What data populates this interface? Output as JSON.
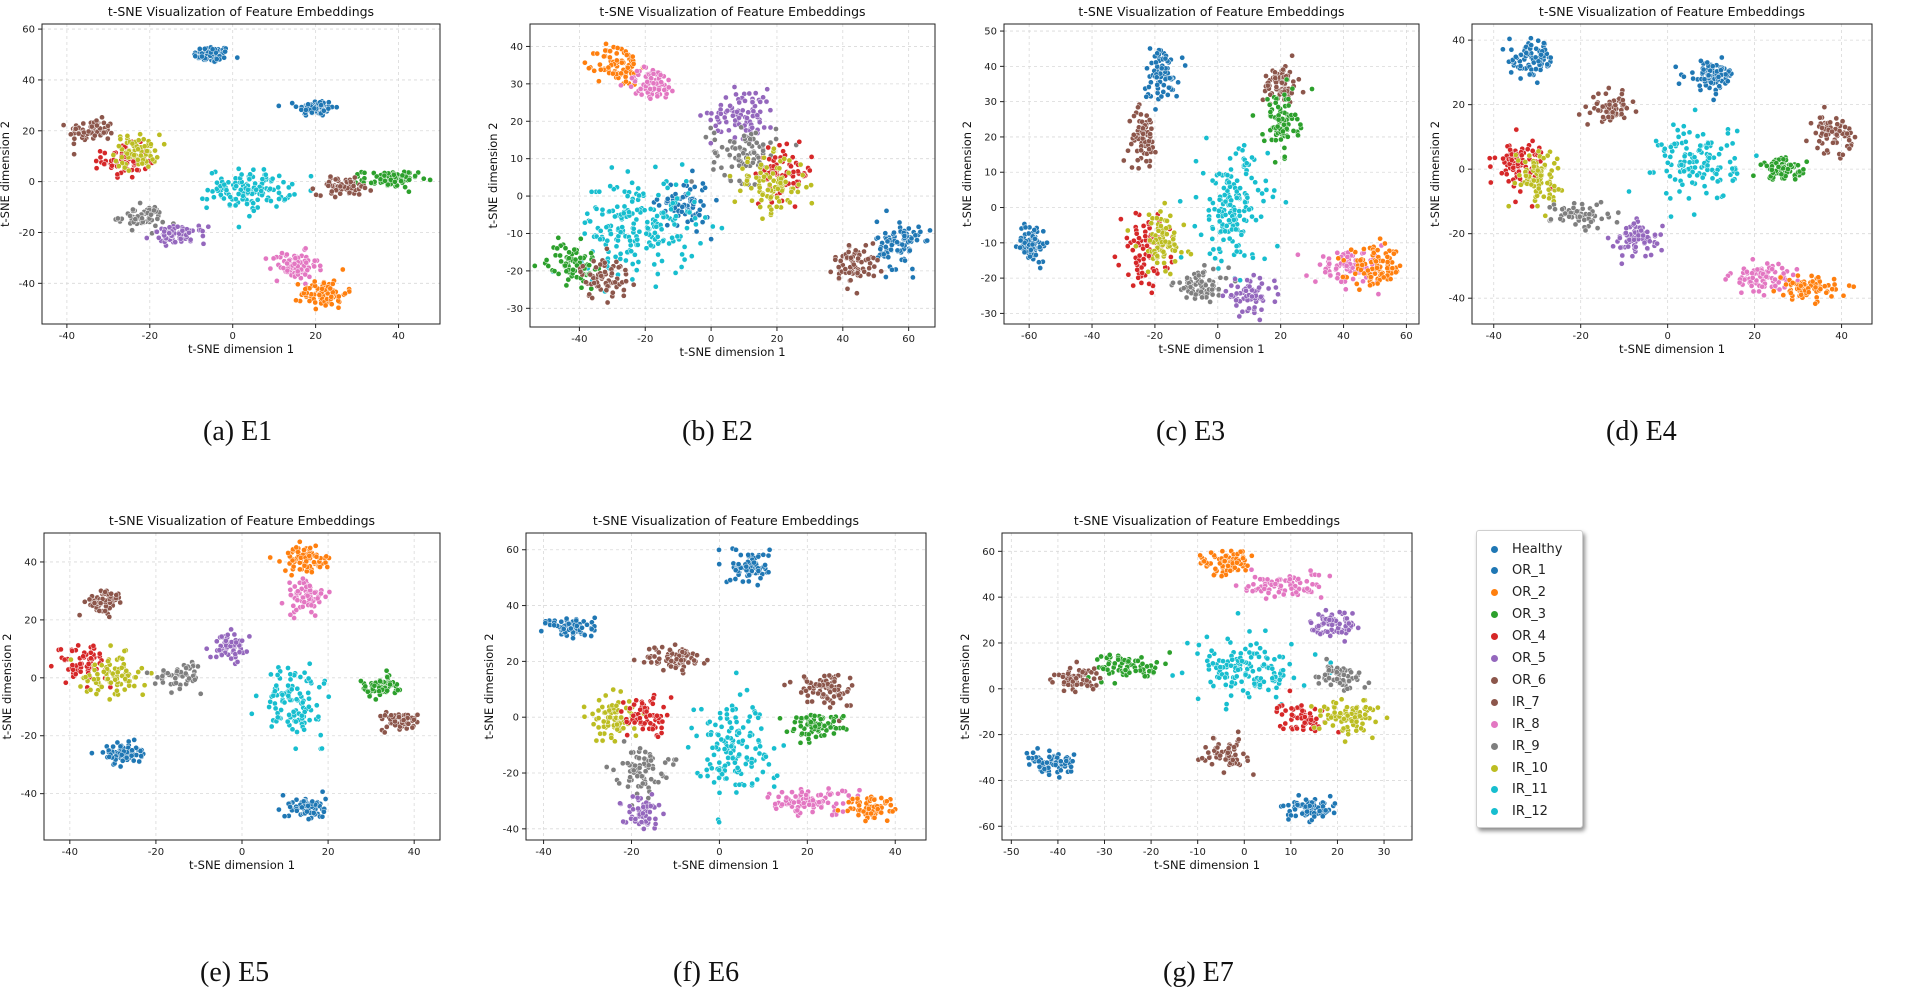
{
  "charts": [
    {
      "id": "E1",
      "caption": "(a) E1",
      "title": "t-SNE Visualization of Feature Embeddings",
      "xlabel": "t-SNE dimension 1",
      "ylabel": "t-SNE dimension 2",
      "xlim": [
        -46,
        50
      ],
      "ylim": [
        -56,
        62
      ],
      "xticks": [
        -40,
        -20,
        0,
        20,
        40
      ],
      "yticks": [
        -40,
        -20,
        0,
        20,
        40,
        60
      ]
    },
    {
      "id": "E2",
      "caption": "(b) E2",
      "title": "t-SNE Visualization of Feature Embeddings",
      "xlabel": "t-SNE dimension 1",
      "ylabel": "t-SNE dimension 2",
      "xlim": [
        -55,
        68
      ],
      "ylim": [
        -35,
        46
      ],
      "xticks": [
        -40,
        -20,
        0,
        20,
        40,
        60
      ],
      "yticks": [
        -30,
        -20,
        -10,
        0,
        10,
        20,
        30,
        40
      ]
    },
    {
      "id": "E3",
      "caption": "(c) E3",
      "title": "t-SNE Visualization of Feature Embeddings",
      "xlabel": "t-SNE dimension 1",
      "ylabel": "t-SNE dimension 2",
      "xlim": [
        -68,
        64
      ],
      "ylim": [
        -33,
        52
      ],
      "xticks": [
        -60,
        -40,
        -20,
        0,
        20,
        40,
        60
      ],
      "yticks": [
        -30,
        -20,
        -10,
        0,
        10,
        20,
        30,
        40,
        50
      ]
    },
    {
      "id": "E4",
      "caption": "(d) E4",
      "title": "t-SNE Visualization of Feature Embeddings",
      "xlabel": "t-SNE dimension 1",
      "ylabel": "t-SNE dimension 2",
      "xlim": [
        -45,
        47
      ],
      "ylim": [
        -48,
        45
      ],
      "xticks": [
        -40,
        -20,
        0,
        20,
        40
      ],
      "yticks": [
        -40,
        -20,
        0,
        20,
        40
      ]
    },
    {
      "id": "E5",
      "caption": "(e) E5",
      "title": "t-SNE Visualization of Feature Embeddings",
      "xlabel": "t-SNE dimension 1",
      "ylabel": "t-SNE dimension 2",
      "xlim": [
        -46,
        46
      ],
      "ylim": [
        -56,
        50
      ],
      "xticks": [
        -40,
        -20,
        0,
        20,
        40
      ],
      "yticks": [
        -40,
        -20,
        0,
        20,
        40
      ]
    },
    {
      "id": "E6",
      "caption": "(f) E6",
      "title": "t-SNE Visualization of Feature Embeddings",
      "xlabel": "t-SNE dimension 1",
      "ylabel": "t-SNE dimension 2",
      "xlim": [
        -44,
        47
      ],
      "ylim": [
        -44,
        66
      ],
      "xticks": [
        -40,
        -20,
        0,
        20,
        40
      ],
      "yticks": [
        -40,
        -20,
        0,
        20,
        40,
        60
      ]
    },
    {
      "id": "E7",
      "caption": "(g) E7",
      "title": "t-SNE Visualization of Feature Embeddings",
      "xlabel": "t-SNE dimension 1",
      "ylabel": "t-SNE dimension 2",
      "xlim": [
        -52,
        36
      ],
      "ylim": [
        -66,
        68
      ],
      "xticks": [
        -50,
        -40,
        -30,
        -20,
        -10,
        0,
        10,
        20,
        30
      ],
      "yticks": [
        -60,
        -40,
        -20,
        0,
        20,
        40,
        60
      ]
    }
  ],
  "chart_data": {
    "type": "scatter",
    "title": "t-SNE Visualization of Feature Embeddings",
    "xlabel": "t-SNE dimension 1",
    "ylabel": "t-SNE dimension 2",
    "legend_position": "right",
    "classes": [
      {
        "name": "Healthy",
        "color": "#1f77b4"
      },
      {
        "name": "OR_1",
        "color": "#1f77b4"
      },
      {
        "name": "OR_2",
        "color": "#ff7f0e"
      },
      {
        "name": "OR_3",
        "color": "#2ca02c"
      },
      {
        "name": "OR_4",
        "color": "#d62728"
      },
      {
        "name": "OR_5",
        "color": "#9467bd"
      },
      {
        "name": "OR_6",
        "color": "#8c564b"
      },
      {
        "name": "IR_7",
        "color": "#8c564b"
      },
      {
        "name": "IR_8",
        "color": "#e377c2"
      },
      {
        "name": "IR_9",
        "color": "#7f7f7f"
      },
      {
        "name": "IR_10",
        "color": "#bcbd22"
      },
      {
        "name": "IR_11",
        "color": "#17becf"
      },
      {
        "name": "IR_12",
        "color": "#17becf"
      }
    ],
    "panels": [
      {
        "id": "E1",
        "clusters": [
          {
            "cls": "OR_1",
            "cx": -5,
            "cy": 50,
            "rx": 4,
            "ry": 3,
            "n": 80
          },
          {
            "cls": "Healthy",
            "cx": 20,
            "cy": 29,
            "rx": 4,
            "ry": 3,
            "n": 80
          },
          {
            "cls": "OR_6",
            "cx": -34,
            "cy": 20,
            "rx": 5,
            "ry": 4,
            "n": 70
          },
          {
            "cls": "OR_4",
            "cx": -26,
            "cy": 8,
            "rx": 5,
            "ry": 6,
            "n": 70
          },
          {
            "cls": "IR_10",
            "cx": -23,
            "cy": 12,
            "rx": 5,
            "ry": 6,
            "n": 70
          },
          {
            "cls": "IR_9",
            "cx": -22,
            "cy": -14,
            "rx": 5,
            "ry": 4,
            "n": 60
          },
          {
            "cls": "OR_5",
            "cx": -13,
            "cy": -21,
            "rx": 6,
            "ry": 3,
            "n": 70
          },
          {
            "cls": "IR_11",
            "cx": 4,
            "cy": -3,
            "rx": 9,
            "ry": 7,
            "n": 130
          },
          {
            "cls": "OR_3",
            "cx": 38,
            "cy": 1,
            "rx": 6,
            "ry": 3,
            "n": 80
          },
          {
            "cls": "IR_7",
            "cx": 27,
            "cy": -2,
            "rx": 6,
            "ry": 3,
            "n": 70
          },
          {
            "cls": "IR_8",
            "cx": 15,
            "cy": -33,
            "rx": 5,
            "ry": 5,
            "n": 80
          },
          {
            "cls": "OR_2",
            "cx": 22,
            "cy": -44,
            "rx": 5,
            "ry": 5,
            "n": 80
          }
        ]
      },
      {
        "id": "E2",
        "clusters": [
          {
            "cls": "OR_2",
            "cx": -28,
            "cy": 35,
            "rx": 6,
            "ry": 5,
            "n": 80
          },
          {
            "cls": "IR_8",
            "cx": -18,
            "cy": 30,
            "rx": 7,
            "ry": 4,
            "n": 80
          },
          {
            "cls": "OR_5",
            "cx": 10,
            "cy": 22,
            "rx": 9,
            "ry": 6,
            "n": 90
          },
          {
            "cls": "IR_9",
            "cx": 10,
            "cy": 12,
            "rx": 9,
            "ry": 7,
            "n": 80
          },
          {
            "cls": "OR_4",
            "cx": 22,
            "cy": 6,
            "rx": 8,
            "ry": 6,
            "n": 70
          },
          {
            "cls": "IR_10",
            "cx": 18,
            "cy": 3,
            "rx": 10,
            "ry": 7,
            "n": 90
          },
          {
            "cls": "OR_1",
            "cx": -8,
            "cy": -2,
            "rx": 7,
            "ry": 6,
            "n": 70
          },
          {
            "cls": "IR_11",
            "cx": -22,
            "cy": -8,
            "rx": 16,
            "ry": 12,
            "n": 200
          },
          {
            "cls": "OR_3",
            "cx": -42,
            "cy": -18,
            "rx": 7,
            "ry": 5,
            "n": 80
          },
          {
            "cls": "IR_7",
            "cx": -32,
            "cy": -22,
            "rx": 7,
            "ry": 5,
            "n": 70
          },
          {
            "cls": "Healthy",
            "cx": 57,
            "cy": -13,
            "rx": 6,
            "ry": 6,
            "n": 90
          },
          {
            "cls": "OR_6",
            "cx": 44,
            "cy": -18,
            "rx": 6,
            "ry": 5,
            "n": 70
          }
        ]
      },
      {
        "id": "E3",
        "clusters": [
          {
            "cls": "OR_1",
            "cx": -18,
            "cy": 38,
            "rx": 5,
            "ry": 7,
            "n": 80
          },
          {
            "cls": "OR_6",
            "cx": -24,
            "cy": 20,
            "rx": 4,
            "ry": 7,
            "n": 70
          },
          {
            "cls": "Healthy",
            "cx": -59,
            "cy": -10,
            "rx": 4,
            "ry": 5,
            "n": 70
          },
          {
            "cls": "IR_7",
            "cx": 20,
            "cy": 35,
            "rx": 5,
            "ry": 5,
            "n": 70
          },
          {
            "cls": "OR_3",
            "cx": 20,
            "cy": 24,
            "rx": 5,
            "ry": 8,
            "n": 80
          },
          {
            "cls": "IR_11",
            "cx": 5,
            "cy": 0,
            "rx": 10,
            "ry": 15,
            "n": 160
          },
          {
            "cls": "OR_4",
            "cx": -23,
            "cy": -12,
            "rx": 7,
            "ry": 9,
            "n": 80
          },
          {
            "cls": "IR_10",
            "cx": -18,
            "cy": -10,
            "rx": 7,
            "ry": 8,
            "n": 80
          },
          {
            "cls": "IR_9",
            "cx": -5,
            "cy": -22,
            "rx": 8,
            "ry": 4,
            "n": 70
          },
          {
            "cls": "OR_5",
            "cx": 10,
            "cy": -25,
            "rx": 7,
            "ry": 4,
            "n": 70
          },
          {
            "cls": "IR_8",
            "cx": 42,
            "cy": -17,
            "rx": 10,
            "ry": 4,
            "n": 90
          },
          {
            "cls": "OR_2",
            "cx": 50,
            "cy": -17,
            "rx": 8,
            "ry": 5,
            "n": 90
          }
        ]
      },
      {
        "id": "E4",
        "clusters": [
          {
            "cls": "Healthy",
            "cx": -31,
            "cy": 34,
            "rx": 5,
            "ry": 5,
            "n": 80
          },
          {
            "cls": "OR_1",
            "cx": 10,
            "cy": 29,
            "rx": 5,
            "ry": 4,
            "n": 80
          },
          {
            "cls": "OR_6",
            "cx": -13,
            "cy": 19,
            "rx": 4,
            "ry": 4,
            "n": 60
          },
          {
            "cls": "IR_7",
            "cx": 38,
            "cy": 11,
            "rx": 4,
            "ry": 5,
            "n": 70
          },
          {
            "cls": "OR_4",
            "cx": -34,
            "cy": 2,
            "rx": 5,
            "ry": 7,
            "n": 80
          },
          {
            "cls": "IR_10",
            "cx": -30,
            "cy": -2,
            "rx": 5,
            "ry": 7,
            "n": 80
          },
          {
            "cls": "IR_9",
            "cx": -20,
            "cy": -14,
            "rx": 6,
            "ry": 4,
            "n": 60
          },
          {
            "cls": "OR_5",
            "cx": -7,
            "cy": -22,
            "rx": 5,
            "ry": 5,
            "n": 70
          },
          {
            "cls": "IR_11",
            "cx": 7,
            "cy": 2,
            "rx": 8,
            "ry": 11,
            "n": 130
          },
          {
            "cls": "OR_3",
            "cx": 27,
            "cy": 0,
            "rx": 5,
            "ry": 3,
            "n": 70
          },
          {
            "cls": "IR_8",
            "cx": 22,
            "cy": -34,
            "rx": 7,
            "ry": 4,
            "n": 80
          },
          {
            "cls": "OR_2",
            "cx": 32,
            "cy": -37,
            "rx": 6,
            "ry": 3,
            "n": 80
          }
        ]
      },
      {
        "id": "E5",
        "clusters": [
          {
            "cls": "OR_2",
            "cx": 15,
            "cy": 41,
            "rx": 5,
            "ry": 4,
            "n": 80
          },
          {
            "cls": "IR_8",
            "cx": 15,
            "cy": 28,
            "rx": 4,
            "ry": 6,
            "n": 70
          },
          {
            "cls": "OR_6",
            "cx": -32,
            "cy": 26,
            "rx": 4,
            "ry": 4,
            "n": 60
          },
          {
            "cls": "OR_4",
            "cx": -37,
            "cy": 5,
            "rx": 5,
            "ry": 6,
            "n": 70
          },
          {
            "cls": "IR_10",
            "cx": -30,
            "cy": 1,
            "rx": 7,
            "ry": 6,
            "n": 80
          },
          {
            "cls": "IR_9",
            "cx": -14,
            "cy": 1,
            "rx": 5,
            "ry": 4,
            "n": 50
          },
          {
            "cls": "OR_5",
            "cx": -3,
            "cy": 11,
            "rx": 4,
            "ry": 4,
            "n": 60
          },
          {
            "cls": "IR_11",
            "cx": 12,
            "cy": -8,
            "rx": 6,
            "ry": 11,
            "n": 110
          },
          {
            "cls": "OR_3",
            "cx": 32,
            "cy": -3,
            "rx": 4,
            "ry": 3,
            "n": 70
          },
          {
            "cls": "IR_7",
            "cx": 37,
            "cy": -15,
            "rx": 4,
            "ry": 3,
            "n": 60
          },
          {
            "cls": "Healthy",
            "cx": -28,
            "cy": -26,
            "rx": 4,
            "ry": 3,
            "n": 70
          },
          {
            "cls": "OR_1",
            "cx": 15,
            "cy": -45,
            "rx": 4,
            "ry": 4,
            "n": 70
          }
        ]
      },
      {
        "id": "E6",
        "clusters": [
          {
            "cls": "OR_1",
            "cx": 7,
            "cy": 54,
            "rx": 4,
            "ry": 5,
            "n": 80
          },
          {
            "cls": "Healthy",
            "cx": -33,
            "cy": 32,
            "rx": 5,
            "ry": 4,
            "n": 70
          },
          {
            "cls": "OR_6",
            "cx": -10,
            "cy": 21,
            "rx": 6,
            "ry": 4,
            "n": 70
          },
          {
            "cls": "IR_10",
            "cx": -24,
            "cy": 0,
            "rx": 5,
            "ry": 8,
            "n": 80
          },
          {
            "cls": "OR_4",
            "cx": -17,
            "cy": 0,
            "rx": 4,
            "ry": 7,
            "n": 60
          },
          {
            "cls": "IR_9",
            "cx": -18,
            "cy": -18,
            "rx": 5,
            "ry": 7,
            "n": 70
          },
          {
            "cls": "OR_5",
            "cx": -18,
            "cy": -34,
            "rx": 4,
            "ry": 5,
            "n": 60
          },
          {
            "cls": "IR_11",
            "cx": 3,
            "cy": -10,
            "rx": 8,
            "ry": 16,
            "n": 140
          },
          {
            "cls": "IR_7",
            "cx": 24,
            "cy": 10,
            "rx": 6,
            "ry": 6,
            "n": 80
          },
          {
            "cls": "OR_3",
            "cx": 22,
            "cy": -3,
            "rx": 6,
            "ry": 4,
            "n": 70
          },
          {
            "cls": "IR_8",
            "cx": 20,
            "cy": -30,
            "rx": 10,
            "ry": 4,
            "n": 90
          },
          {
            "cls": "OR_2",
            "cx": 35,
            "cy": -33,
            "rx": 5,
            "ry": 4,
            "n": 70
          }
        ]
      },
      {
        "id": "E7",
        "clusters": [
          {
            "cls": "OR_2",
            "cx": -4,
            "cy": 55,
            "rx": 5,
            "ry": 5,
            "n": 80
          },
          {
            "cls": "IR_8",
            "cx": 8,
            "cy": 45,
            "rx": 8,
            "ry": 5,
            "n": 80
          },
          {
            "cls": "OR_5",
            "cx": 20,
            "cy": 28,
            "rx": 5,
            "ry": 6,
            "n": 70
          },
          {
            "cls": "OR_3",
            "cx": -25,
            "cy": 10,
            "rx": 7,
            "ry": 5,
            "n": 70
          },
          {
            "cls": "IR_7",
            "cx": -36,
            "cy": 4,
            "rx": 5,
            "ry": 5,
            "n": 60
          },
          {
            "cls": "IR_11",
            "cx": 1,
            "cy": 8,
            "rx": 10,
            "ry": 12,
            "n": 140
          },
          {
            "cls": "IR_9",
            "cx": 20,
            "cy": 5,
            "rx": 5,
            "ry": 5,
            "n": 60
          },
          {
            "cls": "OR_4",
            "cx": 13,
            "cy": -12,
            "rx": 5,
            "ry": 6,
            "n": 60
          },
          {
            "cls": "IR_10",
            "cx": 22,
            "cy": -12,
            "rx": 6,
            "ry": 7,
            "n": 80
          },
          {
            "cls": "OR_6",
            "cx": -4,
            "cy": -28,
            "rx": 4,
            "ry": 6,
            "n": 60
          },
          {
            "cls": "Healthy",
            "cx": -41,
            "cy": -33,
            "rx": 5,
            "ry": 4,
            "n": 80
          },
          {
            "cls": "OR_1",
            "cx": 14,
            "cy": -53,
            "rx": 5,
            "ry": 4,
            "n": 70
          }
        ]
      }
    ]
  }
}
